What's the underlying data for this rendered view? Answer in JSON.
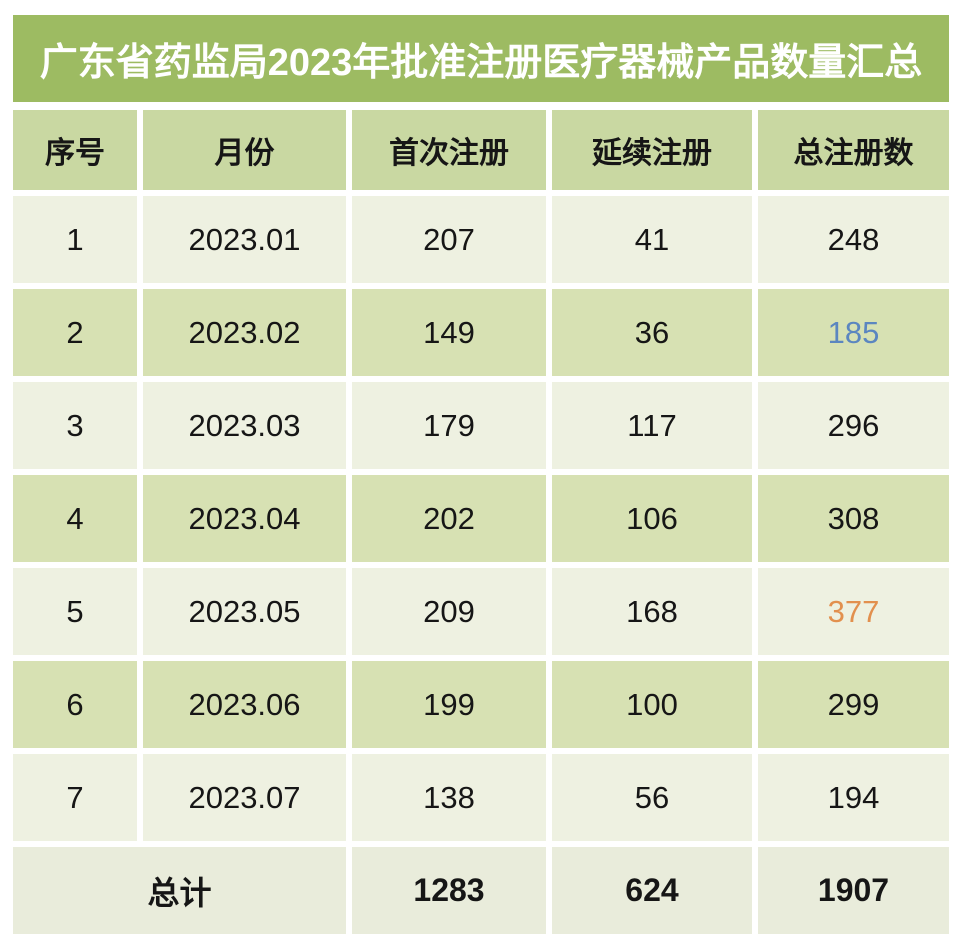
{
  "title": "广东省药监局2023年批准注册医疗器械产品数量汇总",
  "table": {
    "headers": {
      "index": "序号",
      "month": "月份",
      "first": "首次注册",
      "renewal": "延续注册",
      "total": "总注册数"
    },
    "rows": [
      {
        "index": "1",
        "month": "2023.01",
        "first": "207",
        "renewal": "41",
        "total": "248"
      },
      {
        "index": "2",
        "month": "2023.02",
        "first": "149",
        "renewal": "36",
        "total": "185"
      },
      {
        "index": "3",
        "month": "2023.03",
        "first": "179",
        "renewal": "117",
        "total": "296"
      },
      {
        "index": "4",
        "month": "2023.04",
        "first": "202",
        "renewal": "106",
        "total": "308"
      },
      {
        "index": "5",
        "month": "2023.05",
        "first": "209",
        "renewal": "168",
        "total": "377"
      },
      {
        "index": "6",
        "month": "2023.06",
        "first": "199",
        "renewal": "100",
        "total": "299"
      },
      {
        "index": "7",
        "month": "2023.07",
        "first": "138",
        "renewal": "56",
        "total": "194"
      }
    ],
    "footer": {
      "label": "总计",
      "first": "1283",
      "renewal": "624",
      "total": "1907"
    }
  },
  "chart_data": {
    "type": "table",
    "title": "广东省药监局2023年批准注册医疗器械产品数量汇总",
    "columns": [
      "序号",
      "月份",
      "首次注册",
      "延续注册",
      "总注册数"
    ],
    "rows": [
      [
        1,
        "2023.01",
        207,
        41,
        248
      ],
      [
        2,
        "2023.02",
        149,
        36,
        185
      ],
      [
        3,
        "2023.03",
        179,
        117,
        296
      ],
      [
        4,
        "2023.04",
        202,
        106,
        308
      ],
      [
        5,
        "2023.05",
        209,
        168,
        377
      ],
      [
        6,
        "2023.06",
        199,
        100,
        299
      ],
      [
        7,
        "2023.07",
        138,
        56,
        194
      ]
    ],
    "footer_row": [
      "总计",
      1283,
      624,
      1907
    ],
    "highlights": [
      {
        "row_index": 2,
        "column": "总注册数",
        "value": 185,
        "color": "#5b86c0"
      },
      {
        "row_index": 5,
        "column": "总注册数",
        "value": 377,
        "color": "#e2904e"
      }
    ]
  },
  "colors": {
    "title-bg": "#9dbb62",
    "title-text": "#ffffff",
    "header-bg": "#c9d8a2",
    "row-light": "#eef1e1",
    "row-dark": "#d7e1b3",
    "footer-bg": "#e9ecdb",
    "text": "#161616",
    "accent-blue": "#5b86c0",
    "accent-orange": "#e2904e",
    "gap": "#ffffff"
  }
}
